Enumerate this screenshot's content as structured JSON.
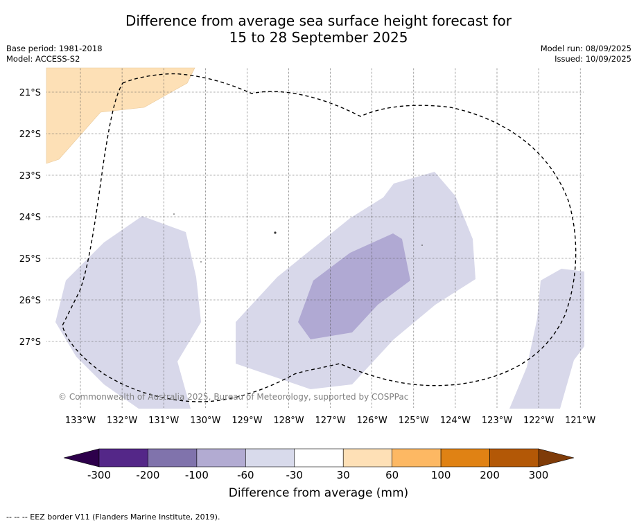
{
  "title_line1": "Difference from average sea surface height forecast for",
  "title_line2": "15 to 28 September 2025",
  "meta": {
    "base_period": "Base period: 1981-2018",
    "model": "Model: ACCESS-S2",
    "model_run": "Model run: 08/09/2025",
    "issued": "Issued: 10/09/2025"
  },
  "map": {
    "lat_labels": [
      "21°S",
      "22°S",
      "23°S",
      "24°S",
      "25°S",
      "26°S",
      "27°S"
    ],
    "lon_labels": [
      "133°W",
      "132°W",
      "131°W",
      "130°W",
      "129°W",
      "128°W",
      "127°W",
      "126°W",
      "125°W",
      "124°W",
      "123°W",
      "122°W",
      "121°W"
    ],
    "copyright": "© Commonwealth of Australia 2025, Bureau of Meteorology, supported by COSPPac",
    "regions": [
      {
        "name": "positive 30 to 60 mm (top-left corner)",
        "color": "#fde0b6"
      },
      {
        "name": "negative -60 to -30 mm",
        "color": "#d8d8ea"
      },
      {
        "name": "negative -100 to -60 mm",
        "color": "#b0a9d3"
      }
    ],
    "eez_border_style": "dashed"
  },
  "colorbar": {
    "ticks": [
      "-300",
      "-200",
      "-100",
      "-60",
      "-30",
      "30",
      "60",
      "100",
      "200",
      "300"
    ],
    "colors": [
      "#542788",
      "#8073ac",
      "#b2abd2",
      "#d8daeb",
      "#ffffff",
      "#fee0b6",
      "#fdb863",
      "#e08214",
      "#b35806"
    ],
    "under_color": "#2d004b",
    "over_color": "#7f3b08",
    "label": "Difference from average (mm)"
  },
  "footer": "--  --  -- EEZ border V11 (Flanders Marine Institute, 2019)."
}
